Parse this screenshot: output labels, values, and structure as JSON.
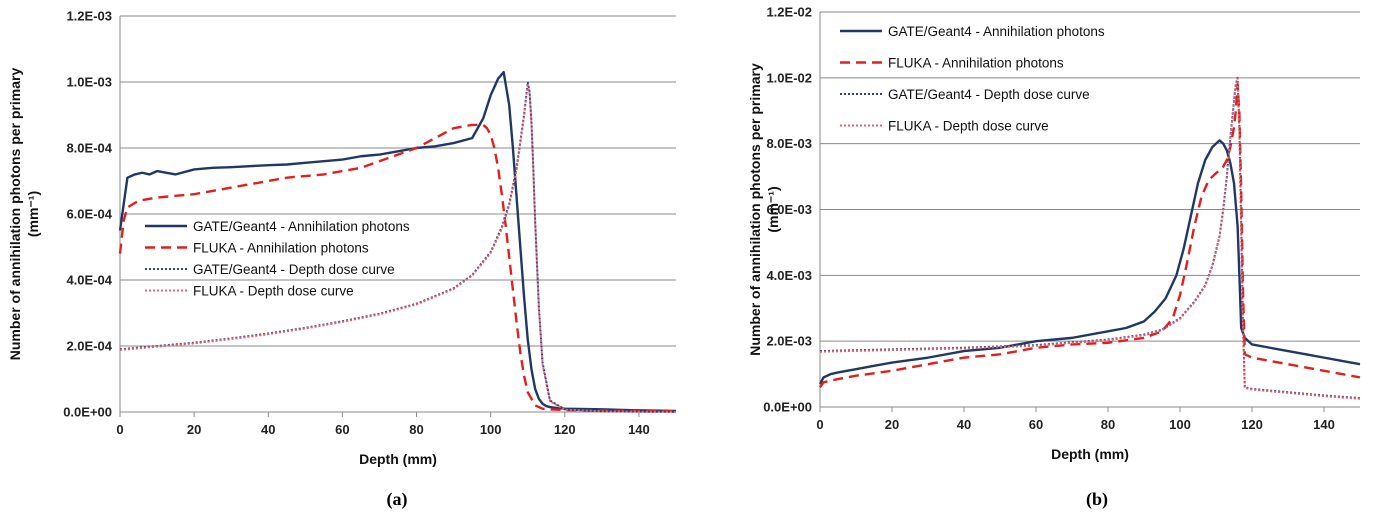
{
  "chart_data": [
    {
      "type": "line",
      "panel_label": "(a)",
      "xlabel": "Depth (mm)",
      "ylabel": "Number of annihilation photons per primary",
      "ylabel_unit": "(mm⁻¹)",
      "xlim": [
        0,
        150
      ],
      "ylim": [
        0,
        0.0012
      ],
      "xticks": [
        "0",
        "20",
        "40",
        "60",
        "80",
        "100",
        "120",
        "140"
      ],
      "yticks": [
        "0.0E+00",
        "2.0E-04",
        "4.0E-04",
        "6.0E-04",
        "8.0E-04",
        "1.0E-03",
        "1.2E-03"
      ],
      "grid": true,
      "legend_position": "center-left",
      "series": [
        {
          "name": "GATE/Geant4 - Annihilation photons",
          "color": "#1f3864",
          "style": "solid",
          "x": [
            0,
            1,
            2,
            4,
            6,
            8,
            10,
            15,
            20,
            25,
            30,
            35,
            40,
            45,
            50,
            55,
            60,
            65,
            70,
            75,
            80,
            85,
            90,
            95,
            98,
            100,
            102,
            103.5,
            105,
            106,
            107,
            108,
            109,
            110,
            111,
            112,
            113,
            114,
            115,
            116,
            118,
            120,
            130,
            140,
            150
          ],
          "y": [
            0.00055,
            0.00063,
            0.00071,
            0.00072,
            0.000725,
            0.00072,
            0.00073,
            0.00072,
            0.000735,
            0.00074,
            0.000742,
            0.000745,
            0.000748,
            0.00075,
            0.000755,
            0.00076,
            0.000765,
            0.000775,
            0.00078,
            0.00079,
            0.0008,
            0.000805,
            0.000815,
            0.00083,
            0.00089,
            0.00096,
            0.00101,
            0.00103,
            0.00093,
            0.0008,
            0.00065,
            0.0005,
            0.00035,
            0.00022,
            0.00013,
            7e-05,
            4e-05,
            2.5e-05,
            1.8e-05,
            1.5e-05,
            1.2e-05,
            1e-05,
            8e-06,
            5e-06,
            3e-06
          ]
        },
        {
          "name": "FLUKA - Annihilation photons",
          "color": "#e02020",
          "style": "dashed",
          "x": [
            0,
            1,
            2,
            5,
            10,
            15,
            20,
            25,
            30,
            35,
            40,
            45,
            50,
            55,
            60,
            65,
            70,
            75,
            80,
            85,
            90,
            95,
            98,
            99,
            100,
            101,
            102,
            103,
            104,
            105,
            106,
            107,
            108,
            109,
            110,
            112,
            114,
            116,
            120,
            130,
            140,
            150
          ],
          "y": [
            0.00048,
            0.00058,
            0.00062,
            0.00064,
            0.00065,
            0.000655,
            0.00066,
            0.00067,
            0.00068,
            0.00069,
            0.0007,
            0.00071,
            0.000715,
            0.00072,
            0.00073,
            0.00074,
            0.00076,
            0.00078,
            0.0008,
            0.00083,
            0.00086,
            0.00087,
            0.00087,
            0.00086,
            0.00084,
            0.0008,
            0.00074,
            0.00066,
            0.00057,
            0.00047,
            0.00037,
            0.00027,
            0.00018,
            0.00011,
            6e-05,
            2e-05,
            1e-05,
            8e-06,
            6e-06,
            4e-06,
            3e-06,
            2e-06
          ]
        },
        {
          "name": "GATE/Geant4 - Depth dose curve",
          "color": "#2f3f80",
          "style": "dotted",
          "x": [
            0,
            10,
            20,
            30,
            40,
            50,
            60,
            70,
            80,
            90,
            95,
            100,
            103,
            105,
            107,
            108,
            109,
            109.5,
            110,
            110.5,
            111,
            111.5,
            112,
            113,
            114,
            116,
            120,
            130,
            140,
            150
          ],
          "y": [
            0.00019,
            0.0002,
            0.00021,
            0.000223,
            0.000238,
            0.000255,
            0.000275,
            0.000298,
            0.000328,
            0.000375,
            0.000415,
            0.000485,
            0.00056,
            0.00063,
            0.00074,
            0.00082,
            0.0009,
            0.00095,
            0.001,
            0.00097,
            0.00088,
            0.00074,
            0.00058,
            0.00032,
            0.00015,
            3.5e-05,
            8e-06,
            2e-06,
            1e-06,
            5e-07
          ]
        },
        {
          "name": "FLUKA - Depth dose curve",
          "color": "#e06070",
          "style": "dotted",
          "x": [
            0,
            10,
            20,
            30,
            40,
            50,
            60,
            70,
            80,
            90,
            95,
            100,
            103,
            105,
            107,
            108,
            109,
            109.5,
            110,
            110.5,
            111,
            111.5,
            112,
            113,
            114,
            116,
            120,
            130,
            140,
            150
          ],
          "y": [
            0.000188,
            0.000198,
            0.000208,
            0.000221,
            0.000236,
            0.000253,
            0.000273,
            0.000296,
            0.000326,
            0.000373,
            0.000413,
            0.000482,
            0.000555,
            0.000625,
            0.000735,
            0.000815,
            0.000895,
            0.000945,
            0.000995,
            0.000965,
            0.000875,
            0.000735,
            0.000575,
            0.000315,
            0.000145,
            3.3e-05,
            7e-06,
            2e-06,
            1e-06,
            5e-07
          ]
        }
      ]
    },
    {
      "type": "line",
      "panel_label": "(b)",
      "xlabel": "Depth (mm)",
      "ylabel": "Number of annihilation photons per primary",
      "ylabel_unit": "(mm⁻¹)",
      "xlim": [
        0,
        150
      ],
      "ylim": [
        0,
        0.012
      ],
      "xticks": [
        "0",
        "20",
        "40",
        "60",
        "80",
        "100",
        "120",
        "140"
      ],
      "yticks": [
        "0.0E+00",
        "2.0E-03",
        "4.0E-03",
        "6.0E-03",
        "8.0E-03",
        "1.0E-02",
        "1.2E-02"
      ],
      "grid": true,
      "legend_position": "top-left",
      "series": [
        {
          "name": "GATE/Geant4 - Annihilation photons",
          "color": "#1f3864",
          "style": "solid",
          "x": [
            0,
            1,
            3,
            5,
            10,
            15,
            20,
            30,
            40,
            50,
            60,
            70,
            80,
            85,
            90,
            93,
            96,
            99,
            101,
            103,
            105,
            107,
            109,
            110,
            111,
            112,
            113,
            114,
            115,
            116,
            116.5,
            117,
            118,
            120,
            125,
            130,
            135,
            140,
            145,
            150
          ],
          "y": [
            0.0007,
            0.0009,
            0.001,
            0.00105,
            0.00115,
            0.00125,
            0.00135,
            0.0015,
            0.0017,
            0.0018,
            0.002,
            0.0021,
            0.0023,
            0.0024,
            0.0026,
            0.0029,
            0.0033,
            0.004,
            0.0048,
            0.0058,
            0.0068,
            0.0075,
            0.0079,
            0.008,
            0.0081,
            0.008,
            0.0078,
            0.0074,
            0.0068,
            0.0055,
            0.004,
            0.0024,
            0.0021,
            0.0019,
            0.0018,
            0.0017,
            0.0016,
            0.0015,
            0.0014,
            0.0013
          ]
        },
        {
          "name": "FLUKA - Annihilation photons",
          "color": "#e02020",
          "style": "dashed",
          "x": [
            0,
            1,
            3,
            5,
            10,
            20,
            30,
            40,
            50,
            60,
            70,
            80,
            90,
            95,
            98,
            100,
            102,
            104,
            106,
            108,
            110,
            111,
            112,
            113,
            114,
            115,
            115.5,
            116,
            116.5,
            117,
            117.5,
            118,
            120,
            130,
            140,
            150
          ],
          "y": [
            0.0006,
            0.00075,
            0.0008,
            0.00085,
            0.00095,
            0.0011,
            0.0013,
            0.0015,
            0.0016,
            0.0018,
            0.0019,
            0.00195,
            0.0021,
            0.0023,
            0.0027,
            0.0034,
            0.0044,
            0.0055,
            0.0064,
            0.0069,
            0.0071,
            0.0072,
            0.0073,
            0.0075,
            0.0079,
            0.0085,
            0.009,
            0.0098,
            0.0089,
            0.0065,
            0.0035,
            0.0016,
            0.0015,
            0.0013,
            0.0011,
            0.0009
          ]
        },
        {
          "name": "GATE/Geant4 - Depth dose curve",
          "color": "#2f3f80",
          "style": "dotted",
          "x": [
            0,
            20,
            40,
            60,
            80,
            90,
            95,
            100,
            104,
            107,
            109,
            111,
            112,
            113,
            114,
            115,
            115.5,
            116,
            116.5,
            117,
            117.5,
            118,
            120,
            130,
            140,
            150
          ],
          "y": [
            0.0017,
            0.00175,
            0.0018,
            0.00188,
            0.00205,
            0.0022,
            0.00235,
            0.0027,
            0.0032,
            0.0037,
            0.0043,
            0.0052,
            0.006,
            0.007,
            0.0082,
            0.0093,
            0.0098,
            0.01,
            0.0085,
            0.0055,
            0.0025,
            0.0006,
            0.00055,
            0.00045,
            0.00035,
            0.00027
          ]
        },
        {
          "name": "FLUKA - Depth dose curve",
          "color": "#e06070",
          "style": "dotted",
          "x": [
            0,
            20,
            40,
            60,
            80,
            90,
            95,
            100,
            104,
            107,
            109,
            111,
            112,
            113,
            114,
            115,
            115.5,
            116,
            116.5,
            117,
            117.5,
            118,
            120,
            130,
            140,
            150
          ],
          "y": [
            0.00168,
            0.00173,
            0.00178,
            0.00186,
            0.00203,
            0.00218,
            0.00233,
            0.00268,
            0.00318,
            0.00368,
            0.00428,
            0.00518,
            0.00598,
            0.00698,
            0.00818,
            0.00928,
            0.00978,
            0.00998,
            0.0084,
            0.0054,
            0.0024,
            0.00058,
            0.00053,
            0.00043,
            0.00033,
            0.00025
          ]
        }
      ]
    }
  ]
}
